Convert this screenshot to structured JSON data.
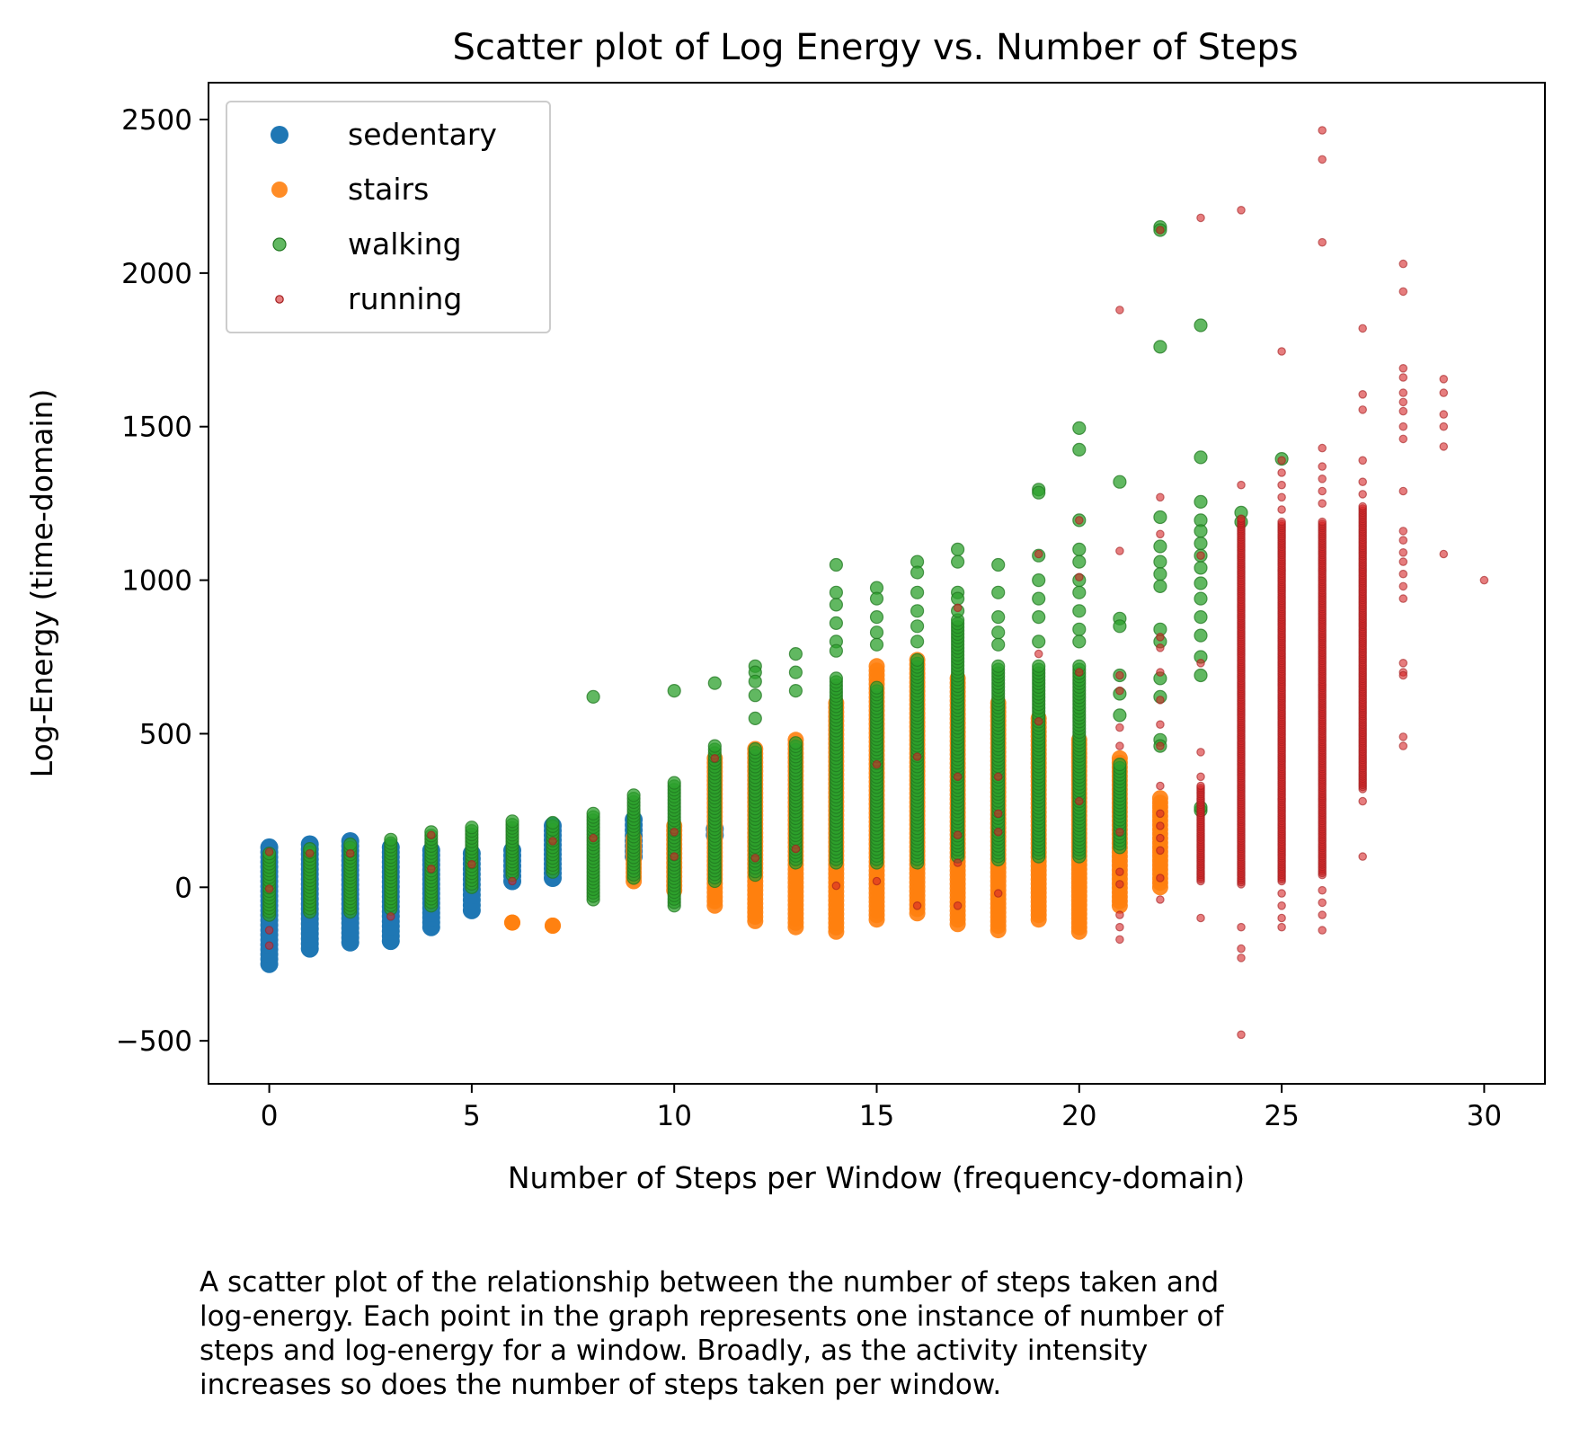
{
  "chart_data": {
    "type": "scatter",
    "title": "Scatter plot of Log Energy vs. Number of Steps",
    "xlabel": "Number of Steps per Window (frequency-domain)",
    "ylabel": "Log-Energy (time-domain)",
    "xlim": [
      -1.5,
      31.5
    ],
    "ylim": [
      -640,
      2620
    ],
    "xticks": [
      0,
      5,
      10,
      15,
      20,
      25,
      30
    ],
    "yticks": [
      -500,
      0,
      500,
      1000,
      1500,
      2000,
      2500
    ],
    "xtick_labels": [
      "0",
      "5",
      "10",
      "15",
      "20",
      "25",
      "30"
    ],
    "ytick_labels": [
      "−500",
      "0",
      "500",
      "1000",
      "1500",
      "2000",
      "2500"
    ],
    "grid": false,
    "legend_position": "top-left",
    "series": [
      {
        "name": "sedentary",
        "color": "#1f77b4",
        "ranges": [
          [
            0,
            -250,
            130
          ],
          [
            1,
            -200,
            140
          ],
          [
            2,
            -180,
            150
          ],
          [
            3,
            -175,
            130
          ],
          [
            4,
            -130,
            120
          ],
          [
            5,
            -75,
            110
          ],
          [
            6,
            20,
            120
          ],
          [
            7,
            30,
            200
          ],
          [
            9,
            100,
            220
          ],
          [
            11,
            170,
            190
          ]
        ]
      },
      {
        "name": "stairs",
        "color": "#ff7f0e",
        "ranges": [
          [
            6,
            -115,
            -115
          ],
          [
            7,
            -125,
            -125
          ],
          [
            9,
            20,
            160
          ],
          [
            10,
            -10,
            200
          ],
          [
            11,
            -60,
            420
          ],
          [
            12,
            -110,
            450
          ],
          [
            13,
            -130,
            480
          ],
          [
            14,
            -145,
            600
          ],
          [
            15,
            -105,
            720
          ],
          [
            16,
            -85,
            740
          ],
          [
            17,
            -120,
            680
          ],
          [
            18,
            -140,
            600
          ],
          [
            19,
            -105,
            550
          ],
          [
            20,
            -145,
            480
          ],
          [
            21,
            -60,
            420
          ],
          [
            22,
            0,
            290
          ]
        ]
      },
      {
        "name": "walking",
        "color": "#2ca02c",
        "ranges": [
          [
            0,
            -90,
            110
          ],
          [
            1,
            -80,
            125
          ],
          [
            2,
            -80,
            140
          ],
          [
            3,
            -70,
            155
          ],
          [
            4,
            -60,
            180
          ],
          [
            5,
            0,
            195
          ],
          [
            6,
            40,
            215
          ],
          [
            7,
            50,
            210
          ],
          [
            8,
            -40,
            240
          ],
          [
            9,
            30,
            300
          ],
          [
            10,
            -60,
            340
          ],
          [
            11,
            20,
            460
          ],
          [
            12,
            40,
            450
          ],
          [
            13,
            80,
            470
          ],
          [
            14,
            80,
            680
          ],
          [
            15,
            80,
            650
          ],
          [
            16,
            80,
            740
          ],
          [
            17,
            100,
            870
          ],
          [
            18,
            90,
            720
          ],
          [
            19,
            100,
            720
          ],
          [
            20,
            100,
            720
          ],
          [
            21,
            130,
            400
          ],
          [
            23,
            250,
            260
          ]
        ],
        "outliers": [
          [
            8,
            620
          ],
          [
            10,
            640
          ],
          [
            11,
            665
          ],
          [
            12,
            720
          ],
          [
            12,
            700
          ],
          [
            12,
            670
          ],
          [
            12,
            625
          ],
          [
            12,
            550
          ],
          [
            13,
            760
          ],
          [
            13,
            700
          ],
          [
            13,
            640
          ],
          [
            14,
            1050
          ],
          [
            14,
            960
          ],
          [
            14,
            920
          ],
          [
            14,
            860
          ],
          [
            14,
            800
          ],
          [
            14,
            770
          ],
          [
            15,
            975
          ],
          [
            15,
            940
          ],
          [
            15,
            880
          ],
          [
            15,
            830
          ],
          [
            15,
            790
          ],
          [
            16,
            1060
          ],
          [
            16,
            1025
          ],
          [
            16,
            960
          ],
          [
            16,
            900
          ],
          [
            16,
            850
          ],
          [
            16,
            800
          ],
          [
            17,
            1100
          ],
          [
            17,
            1060
          ],
          [
            17,
            960
          ],
          [
            17,
            940
          ],
          [
            17,
            900
          ],
          [
            18,
            1050
          ],
          [
            18,
            960
          ],
          [
            18,
            880
          ],
          [
            18,
            830
          ],
          [
            18,
            790
          ],
          [
            19,
            1295
          ],
          [
            19,
            1285
          ],
          [
            19,
            1080
          ],
          [
            19,
            1000
          ],
          [
            19,
            940
          ],
          [
            19,
            880
          ],
          [
            19,
            800
          ],
          [
            20,
            1495
          ],
          [
            20,
            1425
          ],
          [
            20,
            1195
          ],
          [
            20,
            1100
          ],
          [
            20,
            1060
          ],
          [
            20,
            1000
          ],
          [
            20,
            960
          ],
          [
            20,
            900
          ],
          [
            20,
            840
          ],
          [
            20,
            800
          ],
          [
            21,
            1320
          ],
          [
            21,
            875
          ],
          [
            21,
            850
          ],
          [
            21,
            690
          ],
          [
            21,
            630
          ],
          [
            21,
            560
          ],
          [
            22,
            2150
          ],
          [
            22,
            2140
          ],
          [
            22,
            1760
          ],
          [
            22,
            1205
          ],
          [
            22,
            1110
          ],
          [
            22,
            1060
          ],
          [
            22,
            1020
          ],
          [
            22,
            980
          ],
          [
            22,
            840
          ],
          [
            22,
            800
          ],
          [
            22,
            680
          ],
          [
            22,
            620
          ],
          [
            22,
            480
          ],
          [
            22,
            460
          ],
          [
            23,
            1830
          ],
          [
            23,
            1400
          ],
          [
            23,
            1255
          ],
          [
            23,
            1195
          ],
          [
            23,
            1160
          ],
          [
            23,
            1120
          ],
          [
            23,
            1080
          ],
          [
            23,
            1040
          ],
          [
            23,
            990
          ],
          [
            23,
            940
          ],
          [
            23,
            880
          ],
          [
            23,
            820
          ],
          [
            23,
            750
          ],
          [
            23,
            690
          ],
          [
            24,
            1220
          ],
          [
            24,
            1190
          ],
          [
            25,
            1395
          ]
        ]
      },
      {
        "name": "running",
        "color": "#d62728",
        "ranges": [
          [
            23,
            20,
            330
          ],
          [
            24,
            10,
            1200
          ],
          [
            25,
            20,
            1190
          ],
          [
            26,
            40,
            1190
          ],
          [
            27,
            320,
            1240
          ]
        ],
        "outliers": [
          [
            0,
            115
          ],
          [
            0,
            -5
          ],
          [
            0,
            -140
          ],
          [
            0,
            -190
          ],
          [
            1,
            110
          ],
          [
            2,
            110
          ],
          [
            3,
            -95
          ],
          [
            4,
            170
          ],
          [
            4,
            60
          ],
          [
            5,
            75
          ],
          [
            6,
            20
          ],
          [
            7,
            150
          ],
          [
            8,
            160
          ],
          [
            10,
            180
          ],
          [
            10,
            100
          ],
          [
            11,
            420
          ],
          [
            12,
            95
          ],
          [
            13,
            125
          ],
          [
            14,
            5
          ],
          [
            15,
            400
          ],
          [
            15,
            20
          ],
          [
            16,
            425
          ],
          [
            16,
            -60
          ],
          [
            17,
            910
          ],
          [
            17,
            360
          ],
          [
            17,
            170
          ],
          [
            17,
            80
          ],
          [
            17,
            -60
          ],
          [
            18,
            360
          ],
          [
            18,
            240
          ],
          [
            18,
            180
          ],
          [
            18,
            -20
          ],
          [
            19,
            1085
          ],
          [
            19,
            760
          ],
          [
            19,
            540
          ],
          [
            20,
            1195
          ],
          [
            20,
            1010
          ],
          [
            20,
            700
          ],
          [
            20,
            280
          ],
          [
            21,
            1880
          ],
          [
            21,
            1095
          ],
          [
            21,
            690
          ],
          [
            21,
            640
          ],
          [
            21,
            520
          ],
          [
            21,
            460
          ],
          [
            21,
            180
          ],
          [
            21,
            50
          ],
          [
            21,
            10
          ],
          [
            21,
            -90
          ],
          [
            21,
            -130
          ],
          [
            21,
            -170
          ],
          [
            22,
            2140
          ],
          [
            22,
            1270
          ],
          [
            22,
            1150
          ],
          [
            22,
            815
          ],
          [
            22,
            780
          ],
          [
            22,
            700
          ],
          [
            22,
            610
          ],
          [
            22,
            530
          ],
          [
            22,
            460
          ],
          [
            22,
            330
          ],
          [
            22,
            240
          ],
          [
            22,
            200
          ],
          [
            22,
            160
          ],
          [
            22,
            120
          ],
          [
            22,
            30
          ],
          [
            22,
            -40
          ],
          [
            23,
            2180
          ],
          [
            23,
            1080
          ],
          [
            23,
            730
          ],
          [
            23,
            440
          ],
          [
            23,
            360
          ],
          [
            23,
            -100
          ],
          [
            24,
            2205
          ],
          [
            24,
            1310
          ],
          [
            24,
            -130
          ],
          [
            24,
            -200
          ],
          [
            24,
            -230
          ],
          [
            24,
            -480
          ],
          [
            25,
            1745
          ],
          [
            25,
            1390
          ],
          [
            25,
            1350
          ],
          [
            25,
            1310
          ],
          [
            25,
            1270
          ],
          [
            25,
            1230
          ],
          [
            25,
            -20
          ],
          [
            25,
            -60
          ],
          [
            25,
            -100
          ],
          [
            25,
            -130
          ],
          [
            26,
            2465
          ],
          [
            26,
            2370
          ],
          [
            26,
            2100
          ],
          [
            26,
            1430
          ],
          [
            26,
            1370
          ],
          [
            26,
            1330
          ],
          [
            26,
            1290
          ],
          [
            26,
            1250
          ],
          [
            26,
            -10
          ],
          [
            26,
            -50
          ],
          [
            26,
            -90
          ],
          [
            26,
            -140
          ],
          [
            27,
            1820
          ],
          [
            27,
            1605
          ],
          [
            27,
            1555
          ],
          [
            27,
            1390
          ],
          [
            27,
            1320
          ],
          [
            27,
            1280
          ],
          [
            27,
            280
          ],
          [
            27,
            100
          ],
          [
            28,
            2030
          ],
          [
            28,
            1940
          ],
          [
            28,
            1690
          ],
          [
            28,
            1660
          ],
          [
            28,
            1610
          ],
          [
            28,
            1580
          ],
          [
            28,
            1550
          ],
          [
            28,
            1500
          ],
          [
            28,
            1460
          ],
          [
            28,
            1290
          ],
          [
            28,
            1160
          ],
          [
            28,
            1130
          ],
          [
            28,
            1090
          ],
          [
            28,
            1060
          ],
          [
            28,
            1020
          ],
          [
            28,
            980
          ],
          [
            28,
            940
          ],
          [
            28,
            730
          ],
          [
            28,
            700
          ],
          [
            28,
            690
          ],
          [
            28,
            490
          ],
          [
            28,
            460
          ],
          [
            29,
            1655
          ],
          [
            29,
            1610
          ],
          [
            29,
            1540
          ],
          [
            29,
            1500
          ],
          [
            29,
            1435
          ],
          [
            29,
            1085
          ],
          [
            30,
            1000
          ]
        ]
      }
    ]
  },
  "caption": {
    "lines": [
      "A scatter plot of the relationship between the number of steps taken and",
      "log-energy. Each point in the graph represents one instance of number of",
      "steps and log-energy for a window. Broadly, as the activity intensity",
      "increases so does the number of steps taken per window."
    ]
  }
}
